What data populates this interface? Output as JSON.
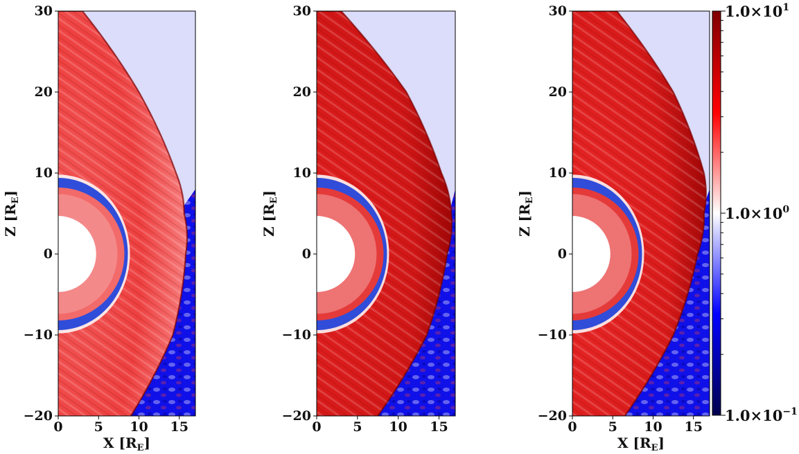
{
  "chart_data": [
    {
      "type": "heatmap",
      "panel": 1,
      "xlabel_main": "X [R",
      "ylabel_main": "Z [R",
      "unit_subscript": "E",
      "label_close": "]",
      "xlim": [
        0,
        17
      ],
      "ylim": [
        -20,
        30
      ],
      "xticks": [
        0,
        5,
        10,
        15
      ],
      "yticks": [
        -20,
        -10,
        0,
        10,
        20,
        30
      ],
      "xtick_labels": [
        "0",
        "5",
        "10",
        "15"
      ],
      "ytick_labels": [
        "−20",
        "−10",
        "0",
        "10",
        "20",
        "30"
      ],
      "bow_shock_x": [
        [
          30,
          3
        ],
        [
          20,
          10
        ],
        [
          10,
          14.6
        ],
        [
          5,
          15.6
        ],
        [
          0,
          15.8
        ],
        [
          -10,
          14.2
        ],
        [
          -20,
          9
        ]
      ],
      "inner_boundary_radius": 4.7,
      "magnetopause_radius": 8.2
    },
    {
      "type": "heatmap",
      "panel": 2,
      "xlabel_main": "",
      "ylabel_main": "Z [R",
      "unit_subscript": "E",
      "label_close": "]",
      "xlim": [
        0,
        17
      ],
      "ylim": [
        -20,
        30
      ],
      "xticks": [
        0,
        5,
        10,
        15
      ],
      "yticks": [
        -20,
        -10,
        0,
        10,
        20,
        30
      ],
      "xtick_labels": [
        "0",
        "5",
        "10",
        "15"
      ],
      "ytick_labels": [
        "−20",
        "−10",
        "0",
        "10",
        "20",
        "30"
      ],
      "bow_shock_x": [
        [
          30,
          3
        ],
        [
          20,
          11
        ],
        [
          10,
          15.3
        ],
        [
          5,
          16.5
        ],
        [
          0,
          16
        ],
        [
          -10,
          13.5
        ],
        [
          -20,
          7.5
        ]
      ],
      "inner_boundary_radius": 4.7,
      "magnetopause_radius": 8.2
    },
    {
      "type": "heatmap",
      "panel": 3,
      "xlabel_main": "X [R",
      "ylabel_main": "Z [R",
      "unit_subscript": "E",
      "label_close": "]",
      "xlim": [
        0,
        17
      ],
      "ylim": [
        -20,
        30
      ],
      "xticks": [
        0,
        5,
        10,
        15
      ],
      "yticks": [
        -20,
        -10,
        0,
        10,
        20,
        30
      ],
      "xtick_labels": [
        "0",
        "5",
        "10",
        "15"
      ],
      "ytick_labels": [
        "−20",
        "−10",
        "0",
        "10",
        "20",
        "30"
      ],
      "bow_shock_x": [
        [
          30,
          5.5
        ],
        [
          20,
          12.5
        ],
        [
          10,
          16.3
        ],
        [
          5,
          16.3
        ],
        [
          0,
          15.5
        ],
        [
          -10,
          12.5
        ],
        [
          -20,
          6.5
        ]
      ],
      "inner_boundary_radius": 4.7,
      "magnetopause_radius": 8.2
    }
  ],
  "colorbar": {
    "scale": "log",
    "range": [
      0.1,
      10
    ],
    "colormap": "seismic",
    "colors": {
      "low": "#00004d",
      "mid": "#ffffff",
      "high": "#800000"
    },
    "ticks": [
      {
        "value": 10,
        "mantissa": "1.0",
        "times": "×",
        "base": "10",
        "exponent": "1"
      },
      {
        "value": 1,
        "mantissa": "1.0",
        "times": "×",
        "base": "10",
        "exponent": "0"
      },
      {
        "value": 0.1,
        "mantissa": "1.0",
        "times": "×",
        "base": "10",
        "exponent": "−1"
      }
    ]
  }
}
